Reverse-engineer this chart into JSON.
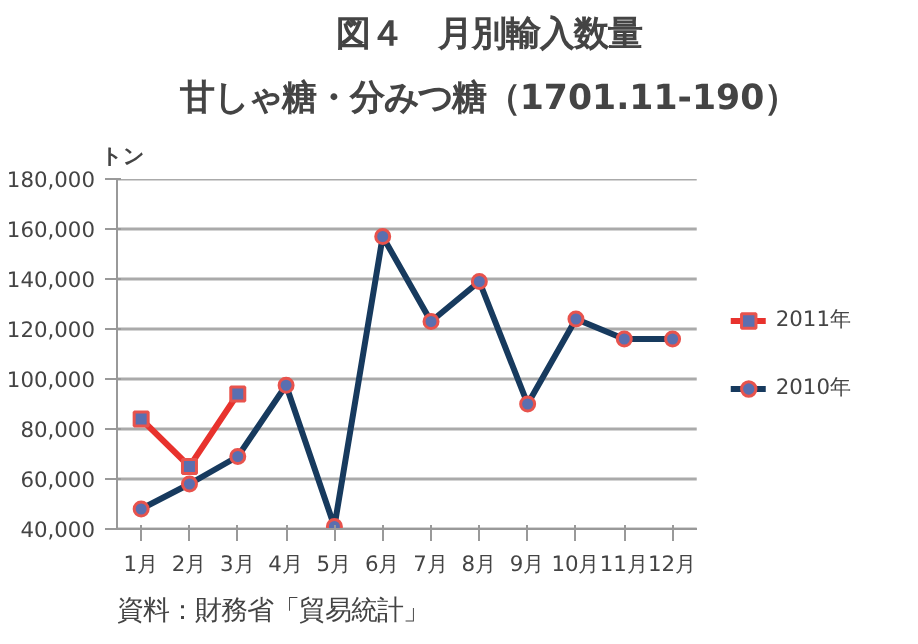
{
  "chart_data": {
    "type": "line",
    "title": "図４　月別輸入数量",
    "subtitle": "甘しゃ糖・分みつ糖（1701.11-190）",
    "ylabel": "トン",
    "categories": [
      "1月",
      "2月",
      "3月",
      "4月",
      "5月",
      "6月",
      "7月",
      "8月",
      "9月",
      "10月",
      "11月",
      "12月"
    ],
    "series": [
      {
        "name": "2011年",
        "color": "#e8322d",
        "marker": "square",
        "values": [
          84000,
          65000,
          94000,
          null,
          null,
          null,
          null,
          null,
          null,
          null,
          null,
          null
        ]
      },
      {
        "name": "2010年",
        "color": "#173a5e",
        "marker": "circle",
        "values": [
          48000,
          58000,
          69000,
          97500,
          41000,
          157000,
          123000,
          139000,
          90000,
          124000,
          116000,
          116000
        ]
      }
    ],
    "ylim": [
      40000,
      180000
    ],
    "yticks": [
      {
        "value": 40000,
        "label": "40,000"
      },
      {
        "value": 60000,
        "label": "60,000"
      },
      {
        "value": 80000,
        "label": "80,000"
      },
      {
        "value": 100000,
        "label": "100,000"
      },
      {
        "value": 120000,
        "label": "120,000"
      },
      {
        "value": 140000,
        "label": "140,000"
      },
      {
        "value": 160000,
        "label": "160,000"
      },
      {
        "value": 180000,
        "label": "180,000"
      }
    ],
    "grid": "y",
    "legend": "right",
    "line_style": "solid",
    "annotations": [
      "資料：財務省「貿易統計」"
    ]
  }
}
